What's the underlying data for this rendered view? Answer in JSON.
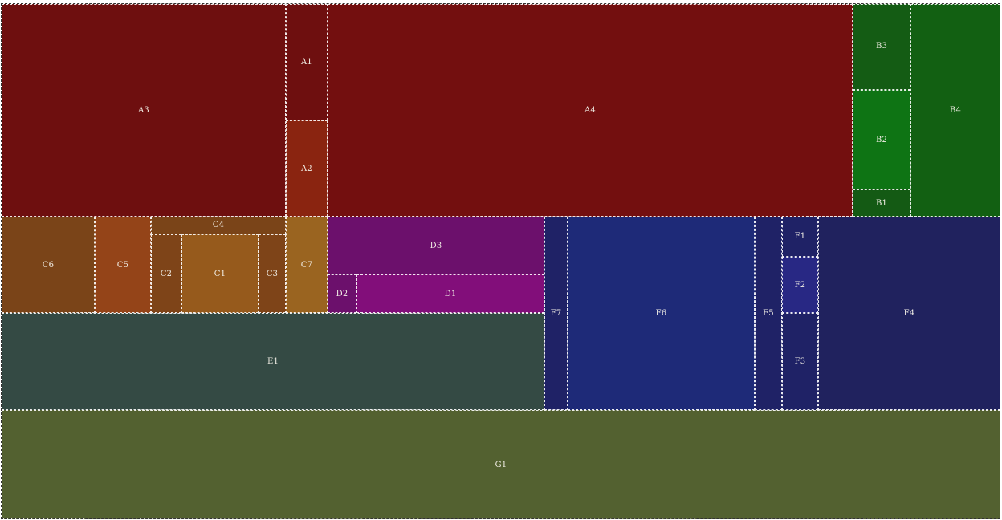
{
  "chart_data": {
    "type": "treemap",
    "title": "",
    "grid": false,
    "legend": "none",
    "nodes": [
      {
        "label": "A3",
        "group": "A",
        "color": "#6e0f0f"
      },
      {
        "label": "A1",
        "group": "A",
        "color": "#6e0f0f"
      },
      {
        "label": "A2",
        "group": "A",
        "color": "#8a2410"
      },
      {
        "label": "A4",
        "group": "A",
        "color": "#730f0f"
      },
      {
        "label": "B3",
        "group": "B",
        "color": "#145c14"
      },
      {
        "label": "B2",
        "group": "B",
        "color": "#0e7414"
      },
      {
        "label": "B1",
        "group": "B",
        "color": "#145a14"
      },
      {
        "label": "B4",
        "group": "B",
        "color": "#126012"
      },
      {
        "label": "C6",
        "group": "C",
        "color": "#7a4418"
      },
      {
        "label": "C5",
        "group": "C",
        "color": "#944418"
      },
      {
        "label": "C4",
        "group": "C",
        "color": "#7a4418"
      },
      {
        "label": "C2",
        "group": "C",
        "color": "#7e4418"
      },
      {
        "label": "C1",
        "group": "C",
        "color": "#965a1c"
      },
      {
        "label": "C3",
        "group": "C",
        "color": "#7e4418"
      },
      {
        "label": "C7",
        "group": "C",
        "color": "#9a6420"
      },
      {
        "label": "D3",
        "group": "D",
        "color": "#6c106c"
      },
      {
        "label": "D2",
        "group": "D",
        "color": "#6c106c"
      },
      {
        "label": "D1",
        "group": "D",
        "color": "#820e7a"
      },
      {
        "label": "E1",
        "group": "E",
        "color": "#344a44"
      },
      {
        "label": "F7",
        "group": "F",
        "color": "#1f2266"
      },
      {
        "label": "F6",
        "group": "F",
        "color": "#1e2a78"
      },
      {
        "label": "F5",
        "group": "F",
        "color": "#1f2266"
      },
      {
        "label": "F1",
        "group": "F",
        "color": "#1f2266"
      },
      {
        "label": "F2",
        "group": "F",
        "color": "#282884"
      },
      {
        "label": "F3",
        "group": "F",
        "color": "#1f2266"
      },
      {
        "label": "F4",
        "group": "F",
        "color": "#20225e"
      },
      {
        "label": "G1",
        "group": "G",
        "color": "#536130"
      }
    ]
  }
}
